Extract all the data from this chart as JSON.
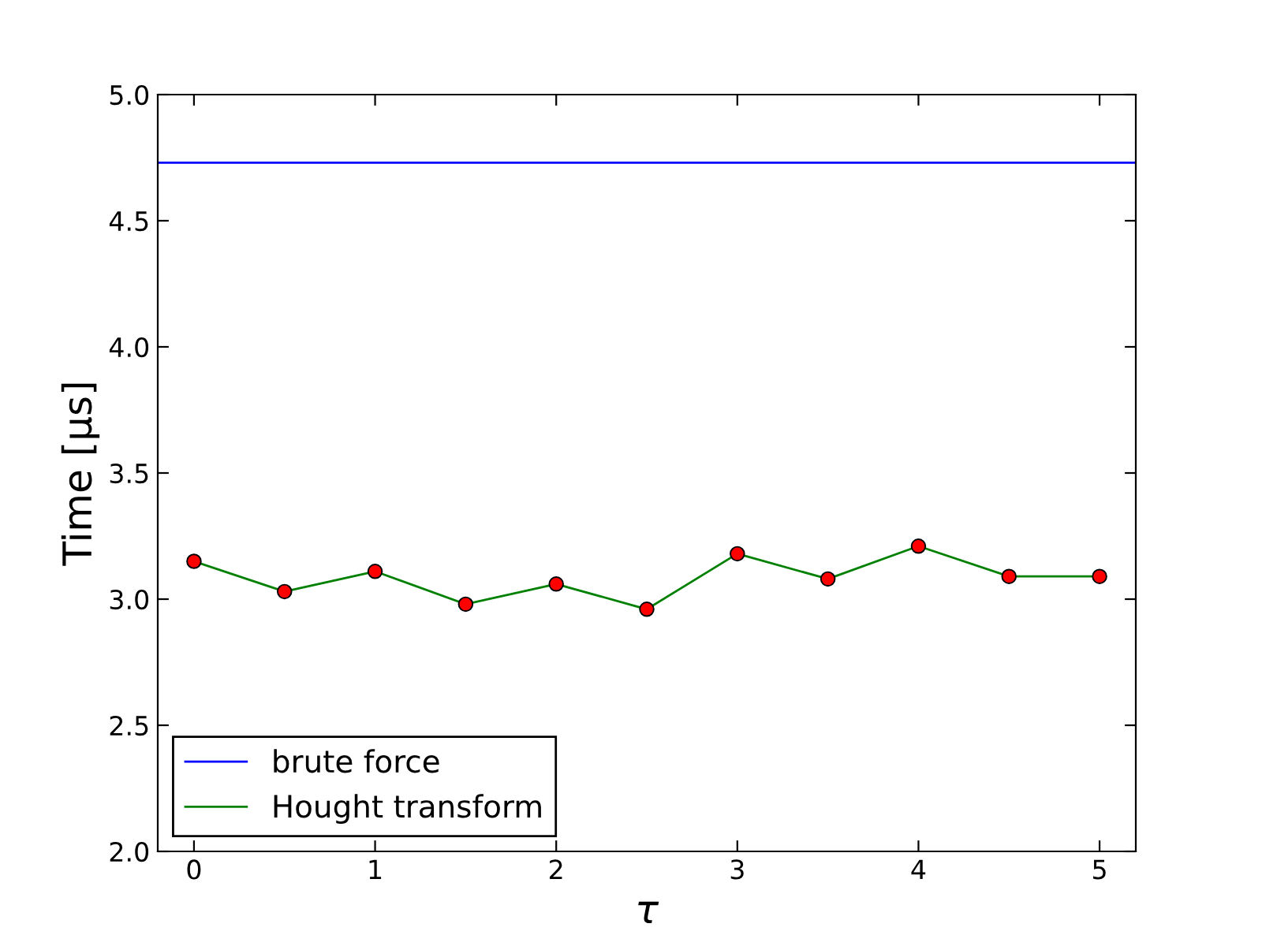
{
  "chart_data": {
    "type": "line",
    "xlabel": "τ",
    "ylabel": "Time [μs]",
    "xlim": [
      -0.2,
      5.2
    ],
    "xticks": [
      0,
      1,
      2,
      3,
      4,
      5
    ],
    "ylim": [
      2.0,
      5.0
    ],
    "yticks": [
      {
        "value": 2.0,
        "label": "2.0"
      },
      {
        "value": 2.5,
        "label": "2.5"
      },
      {
        "value": 3.0,
        "label": "3.0"
      },
      {
        "value": 3.5,
        "label": "3.5"
      },
      {
        "value": 4.0,
        "label": "4.0"
      },
      {
        "value": 4.5,
        "label": "4.5"
      },
      {
        "value": 5.0,
        "label": "5.0"
      }
    ],
    "grid": false,
    "legend": "bottom left",
    "series": [
      {
        "name": "brute force",
        "color": "#0000ff",
        "marker": "none",
        "x": [
          -0.2,
          5.2
        ],
        "values": [
          4.73,
          4.73
        ]
      },
      {
        "name": "Hought transform",
        "color": "#008000",
        "marker": "circle",
        "colors": [
          "#ff0000",
          "#ff0000",
          "#ff0000",
          "#ff0000",
          "#ff0000",
          "#ff0000",
          "#ff0000",
          "#ff0000",
          "#ff0000",
          "#ff0000",
          "#ff0000"
        ],
        "x": [
          0,
          0.5,
          1,
          1.5,
          2,
          2.5,
          3,
          3.5,
          4,
          4.5,
          5
        ],
        "values": [
          3.15,
          3.03,
          3.11,
          2.98,
          3.06,
          2.96,
          3.18,
          3.08,
          3.21,
          3.09,
          3.09
        ]
      }
    ]
  }
}
